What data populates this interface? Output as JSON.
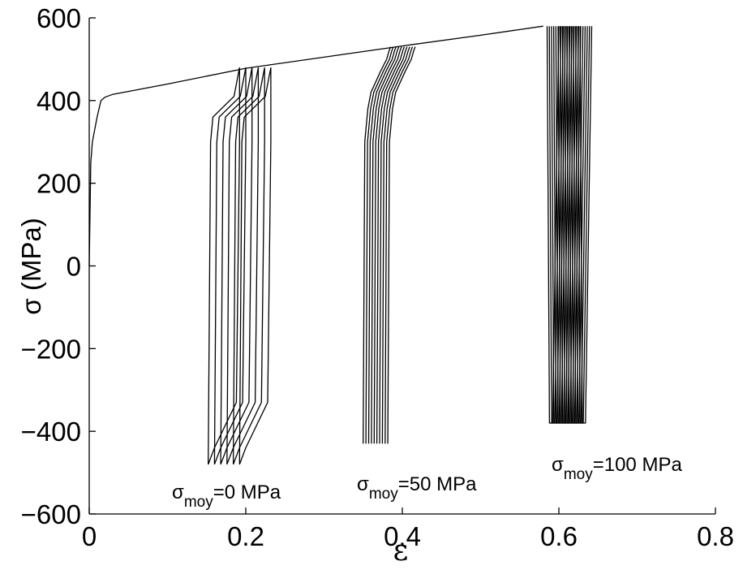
{
  "chart_data": {
    "type": "line",
    "title": "",
    "xlabel": "ε",
    "ylabel": "σ (MPa)",
    "xlim": [
      0,
      0.8
    ],
    "ylim": [
      -600,
      600
    ],
    "xticks": [
      0,
      0.2,
      0.4,
      0.6,
      0.8
    ],
    "xtick_labels": [
      "0",
      "0.2",
      "0.4",
      "0.6",
      "0.8"
    ],
    "yticks": [
      -600,
      -400,
      -200,
      0,
      200,
      400,
      600
    ],
    "ytick_labels": [
      "−600",
      "−400",
      "−200",
      "0",
      "200",
      "400",
      "600"
    ],
    "grid": false,
    "monotonic_loading": {
      "x": [
        0,
        0.002,
        0.004,
        0.006,
        0.01,
        0.015,
        0.02,
        0.03,
        0.05,
        0.1,
        0.2,
        0.3,
        0.4,
        0.5,
        0.58
      ],
      "y": [
        0,
        250,
        300,
        320,
        360,
        400,
        408,
        415,
        422,
        440,
        478,
        505,
        532,
        558,
        580
      ]
    },
    "series": [
      {
        "mean_stress": 0,
        "cycles": 6,
        "strain_shift_per_cycle": 0.008,
        "loop_x": [
          0.192,
          0.192,
          0.188,
          0.16,
          0.152,
          0.152,
          0.155,
          0.158,
          0.185,
          0.192
        ],
        "loop_y": [
          480,
          300,
          -330,
          -440,
          -480,
          -480,
          300,
          360,
          410,
          480
        ]
      },
      {
        "mean_stress": 50,
        "cycles": 10,
        "strain_shift_per_cycle": 0.0035,
        "loop_x": [
          0.35,
          0.352,
          0.356,
          0.36,
          0.372,
          0.38,
          0.383,
          0.385
        ],
        "loop_y": [
          -430,
          300,
          380,
          420,
          470,
          500,
          520,
          530
        ]
      },
      {
        "mean_stress": 100,
        "cycles": 16,
        "strain_shift_per_cycle": 0.0028,
        "loop_x": [
          0.585,
          0.588,
          0.592,
          0.6
        ],
        "loop_y": [
          580,
          -380,
          -380,
          580
        ]
      }
    ],
    "annotations": [
      {
        "main": "σ",
        "sub": "moy",
        "rest": "=0 MPa"
      },
      {
        "main": "σ",
        "sub": "moy",
        "rest": "=50 MPa"
      },
      {
        "main": "σ",
        "sub": "moy",
        "rest": "=100 MPa"
      }
    ]
  }
}
